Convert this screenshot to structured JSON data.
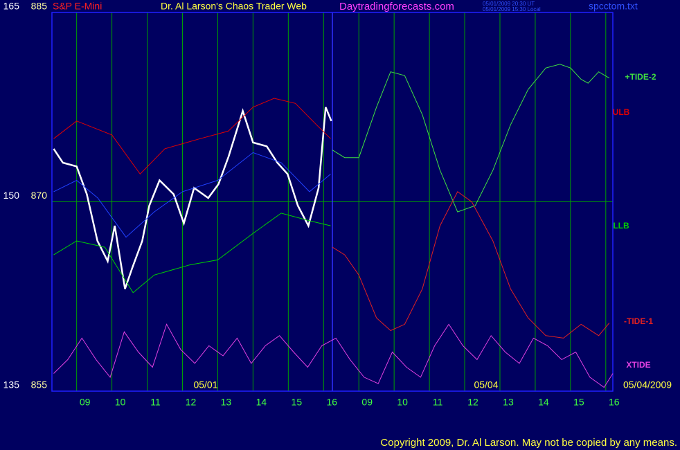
{
  "chart_data": {
    "type": "line",
    "title": "Dr. Al Larson's Chaos Trader Web",
    "symbol": "S&P E-Mini",
    "site": "Daytradingforecasts.com",
    "timestamps": [
      "05/01/2009 20:30 UT",
      "05/01/2009 15:30 Local"
    ],
    "file": "spcctom.txt",
    "dates": [
      "05/01",
      "05/04",
      "05/04/2009"
    ],
    "copyright": "Copyright 2009, Dr. Al Larson. May not be copied by any means.",
    "xlim": [
      0.3,
      16.2
    ],
    "xticks": [
      {
        "value": 1,
        "label": "09"
      },
      {
        "value": 2,
        "label": "10"
      },
      {
        "value": 3,
        "label": "11"
      },
      {
        "value": 4,
        "label": "12"
      },
      {
        "value": 5,
        "label": "13"
      },
      {
        "value": 6,
        "label": "14"
      },
      {
        "value": 7,
        "label": "15"
      },
      {
        "value": 8,
        "label": "16"
      },
      {
        "value": 9,
        "label": "09"
      },
      {
        "value": 10,
        "label": "10"
      },
      {
        "value": 11,
        "label": "11"
      },
      {
        "value": 12,
        "label": "12"
      },
      {
        "value": 13,
        "label": "13"
      },
      {
        "value": 14,
        "label": "14"
      },
      {
        "value": 15,
        "label": "15"
      },
      {
        "value": 16,
        "label": "16"
      }
    ],
    "ylim": [
      135,
      165
    ],
    "yticks": [
      135,
      150,
      165
    ],
    "y2lim": [
      855,
      885
    ],
    "y2ticks": [
      855,
      870,
      885
    ],
    "now_line": 8.25,
    "grid": true,
    "series": [
      {
        "color": "#ffffff",
        "x": [
          0.35,
          0.61,
          1,
          1.29,
          1.59,
          1.88,
          2.08,
          2.37,
          2.57,
          2.86,
          3.06,
          3.35,
          3.75,
          4.04,
          4.33,
          4.73,
          5.02,
          5.31,
          5.71,
          6.0,
          6.39,
          6.69,
          6.98,
          7.27,
          7.57,
          7.86,
          8.06,
          8.22
        ],
        "values": [
          154.2,
          153.1,
          152.8,
          150.6,
          146.9,
          145.3,
          148.1,
          143.1,
          144.7,
          146.9,
          149.7,
          151.7,
          150.6,
          148.3,
          151.1,
          150.3,
          151.4,
          153.6,
          157.2,
          154.7,
          154.4,
          153.1,
          152.2,
          149.7,
          148.1,
          151.1,
          157.5,
          156.4
        ]
      },
      {
        "name": "ULB",
        "color": "#e00000",
        "x": [
          0.35,
          1,
          2,
          2.8,
          3.5,
          4.5,
          5.3,
          6,
          6.6,
          7.2,
          7.8,
          8.2
        ],
        "values": [
          155,
          156.4,
          155.3,
          152.2,
          154.2,
          155,
          155.6,
          157.5,
          158.2,
          157.8,
          156.1,
          155
        ]
      },
      {
        "name": "LLB",
        "color": "#00d000",
        "x": [
          0.35,
          1,
          1.8,
          2.6,
          3.2,
          4.2,
          5,
          6,
          6.8,
          7.6,
          8.2
        ],
        "values": [
          145.8,
          146.9,
          146.4,
          142.8,
          144.2,
          145,
          145.4,
          147.5,
          149.1,
          148.5,
          148.1
        ]
      },
      {
        "color": "#2040ff",
        "x": [
          0.35,
          1,
          1.6,
          2.4,
          3.2,
          4,
          5,
          6,
          6.8,
          7.6,
          8.2
        ],
        "values": [
          150.8,
          151.7,
          150.3,
          147.2,
          149.2,
          150.8,
          151.7,
          153.9,
          153.1,
          150.8,
          152.2
        ]
      },
      {
        "name": "+TIDE-2",
        "color": "#40e040",
        "x": [
          8.25,
          8.6,
          9.0,
          9.5,
          9.9,
          10.3,
          10.8,
          11.3,
          11.8,
          12.3,
          12.8,
          13.3,
          13.8,
          14.3,
          14.7,
          15.0,
          15.3,
          15.5,
          15.8,
          16.1
        ],
        "values": [
          154.1,
          153.5,
          153.5,
          157.5,
          160.3,
          160.0,
          156.9,
          152.5,
          149.2,
          149.7,
          152.5,
          156.1,
          158.9,
          160.6,
          160.9,
          160.6,
          159.7,
          159.4,
          160.3,
          159.8
        ]
      },
      {
        "name": "-TIDE-1",
        "color": "#e02020",
        "x": [
          8.25,
          8.6,
          9.0,
          9.5,
          9.9,
          10.3,
          10.8,
          11.3,
          11.8,
          12.2,
          12.8,
          13.3,
          13.8,
          14.3,
          14.8,
          15.3,
          15.8,
          16.1
        ],
        "values": [
          146.4,
          145.8,
          144.2,
          140.8,
          139.8,
          140.3,
          143.1,
          148.1,
          150.8,
          150.0,
          146.9,
          143.1,
          140.8,
          139.4,
          139.2,
          140.3,
          139.4,
          140.4
        ]
      },
      {
        "name": "XTIDE",
        "color": "#e040e0",
        "x": [
          0.35,
          0.75,
          1.15,
          1.55,
          1.95,
          2.35,
          2.75,
          3.15,
          3.55,
          3.95,
          4.35,
          4.75,
          5.15,
          5.55,
          5.95,
          6.35,
          6.75,
          7.15,
          7.55,
          7.95,
          8.35,
          8.75,
          9.15,
          9.55,
          9.95,
          10.35,
          10.75,
          11.15,
          11.55,
          11.95,
          12.35,
          12.75,
          13.15,
          13.55,
          13.95,
          14.35,
          14.75,
          15.15,
          15.55,
          15.95,
          16.2
        ],
        "values": [
          136.4,
          137.5,
          139.2,
          137.5,
          136.1,
          139.7,
          138.1,
          136.9,
          140.3,
          138.3,
          137.2,
          138.6,
          137.8,
          139.2,
          137.2,
          138.6,
          139.4,
          138.1,
          136.9,
          138.6,
          139.2,
          137.5,
          136.1,
          135.6,
          138.1,
          136.9,
          136.1,
          138.6,
          140.3,
          138.6,
          137.5,
          139.4,
          138.1,
          137.2,
          139.2,
          138.6,
          137.5,
          138.1,
          136.1,
          135.3,
          136.4
        ]
      }
    ]
  }
}
